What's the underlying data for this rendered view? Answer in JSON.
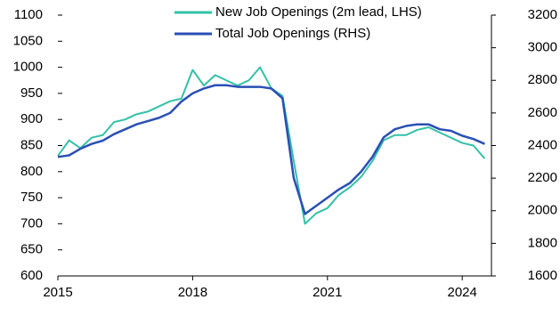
{
  "chart_data": {
    "type": "line",
    "x": [
      2015,
      2015.25,
      2015.5,
      2015.75,
      2016,
      2016.25,
      2016.5,
      2016.75,
      2017,
      2017.25,
      2017.5,
      2017.75,
      2018,
      2018.25,
      2018.5,
      2018.75,
      2019,
      2019.25,
      2019.5,
      2019.75,
      2020,
      2020.25,
      2020.5,
      2020.75,
      2021,
      2021.25,
      2021.5,
      2021.75,
      2022,
      2022.25,
      2022.5,
      2022.75,
      2023,
      2023.25,
      2023.5,
      2023.75,
      2024,
      2024.25,
      2024.5
    ],
    "series": [
      {
        "name": "New Job Openings (2m lead, LHS)",
        "color": "#33c1a7",
        "values": [
          830,
          860,
          845,
          865,
          870,
          895,
          900,
          910,
          915,
          925,
          935,
          940,
          995,
          965,
          985,
          975,
          965,
          975,
          1000,
          960,
          945,
          820,
          700,
          720,
          730,
          755,
          770,
          790,
          820,
          860,
          870,
          870,
          880,
          885,
          875,
          865,
          855,
          850,
          825
        ]
      },
      {
        "name": "Total Job Openings (RHS)",
        "color": "#2a4fb5",
        "axis": "y2",
        "values": [
          2330,
          2340,
          2380,
          2410,
          2430,
          2470,
          2500,
          2530,
          2550,
          2570,
          2600,
          2670,
          2720,
          2750,
          2770,
          2770,
          2760,
          2760,
          2760,
          2750,
          2690,
          2200,
          1980,
          2030,
          2080,
          2130,
          2170,
          2240,
          2330,
          2450,
          2500,
          2520,
          2530,
          2530,
          2500,
          2490,
          2460,
          2440,
          2410
        ]
      }
    ],
    "xlim": [
      2015,
      2024.65
    ],
    "xticks": [
      2015,
      2018,
      2021,
      2024
    ],
    "ylim": [
      600,
      1100
    ],
    "yticks": [
      600,
      650,
      700,
      750,
      800,
      850,
      900,
      950,
      1000,
      1050,
      1100
    ],
    "y2lim": [
      1600,
      3200
    ],
    "y2ticks": [
      1600,
      1800,
      2000,
      2200,
      2400,
      2600,
      2800,
      3000,
      3200
    ]
  }
}
